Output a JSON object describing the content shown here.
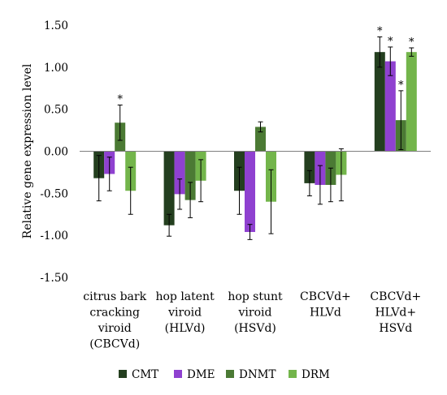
{
  "chart_data": {
    "type": "bar",
    "title": "",
    "xlabel": "",
    "ylabel": "Relative gene expression level",
    "ylim": [
      -1.5,
      1.5
    ],
    "yticks": [
      1.5,
      1.0,
      0.5,
      0.0,
      -0.5,
      -1.0,
      -1.5
    ],
    "ytick_labels": [
      "1.50",
      "1.00",
      "0.50",
      "0.00",
      "-0.50",
      "-1.00",
      "-1.50"
    ],
    "grid": false,
    "legend_position": "bottom",
    "categories": [
      [
        "citrus bark",
        "cracking",
        "viroid",
        "(CBCVd)"
      ],
      [
        "hop latent",
        "viroid",
        "(HLVd)"
      ],
      [
        "hop stunt",
        "viroid",
        "(HSVd)"
      ],
      [
        "CBCVd+",
        "HLVd"
      ],
      [
        "CBCVd+",
        "HLVd+",
        "HSVd"
      ]
    ],
    "significance_marker": "*",
    "series": [
      {
        "name": "CMT",
        "color": "#243f1f",
        "values": [
          -0.32,
          -0.88,
          -0.47,
          -0.38,
          1.18
        ],
        "errors": [
          0.27,
          0.13,
          0.28,
          0.15,
          0.18
        ],
        "significant": [
          false,
          false,
          false,
          false,
          true
        ]
      },
      {
        "name": "DME",
        "color": "#8f41d0",
        "values": [
          -0.27,
          -0.51,
          -0.96,
          -0.4,
          1.07
        ],
        "errors": [
          0.2,
          0.18,
          0.09,
          0.23,
          0.17
        ],
        "significant": [
          false,
          false,
          false,
          false,
          true
        ]
      },
      {
        "name": "DNMT",
        "color": "#4b7a34",
        "values": [
          0.34,
          -0.58,
          0.29,
          -0.4,
          0.37
        ],
        "errors": [
          0.21,
          0.21,
          0.06,
          0.2,
          0.35
        ],
        "significant": [
          true,
          false,
          false,
          false,
          true
        ]
      },
      {
        "name": "DRM",
        "color": "#73b54b",
        "values": [
          -0.47,
          -0.35,
          -0.6,
          -0.28,
          1.18
        ],
        "errors": [
          0.28,
          0.25,
          0.38,
          0.31,
          0.05
        ],
        "significant": [
          false,
          false,
          false,
          false,
          true
        ]
      }
    ]
  }
}
